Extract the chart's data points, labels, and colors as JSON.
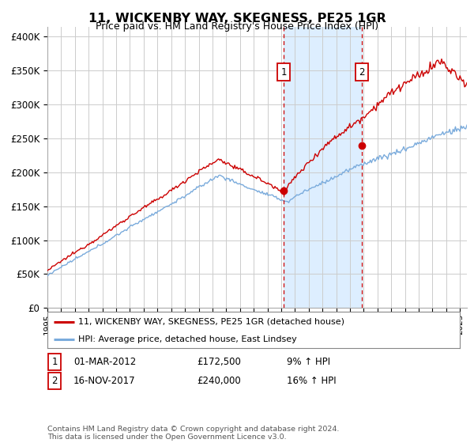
{
  "title": "11, WICKENBY WAY, SKEGNESS, PE25 1GR",
  "subtitle": "Price paid vs. HM Land Registry's House Price Index (HPI)",
  "ytick_values": [
    0,
    50000,
    100000,
    150000,
    200000,
    250000,
    300000,
    350000,
    400000
  ],
  "ylim": [
    0,
    415000
  ],
  "xlim_start": 1995.0,
  "xlim_end": 2025.5,
  "marker1_x": 2012.17,
  "marker1_y": 172500,
  "marker1_label": "1",
  "marker1_date": "01-MAR-2012",
  "marker1_price": "£172,500",
  "marker1_hpi": "9% ↑ HPI",
  "marker2_x": 2017.88,
  "marker2_y": 240000,
  "marker2_label": "2",
  "marker2_date": "16-NOV-2017",
  "marker2_price": "£240,000",
  "marker2_hpi": "16% ↑ HPI",
  "line1_color": "#cc0000",
  "line2_color": "#7aabdc",
  "shade_color": "#ddeeff",
  "grid_color": "#cccccc",
  "bg_color": "#ffffff",
  "legend1_label": "11, WICKENBY WAY, SKEGNESS, PE25 1GR (detached house)",
  "legend2_label": "HPI: Average price, detached house, East Lindsey",
  "footer": "Contains HM Land Registry data © Crown copyright and database right 2024.\nThis data is licensed under the Open Government Licence v3.0."
}
